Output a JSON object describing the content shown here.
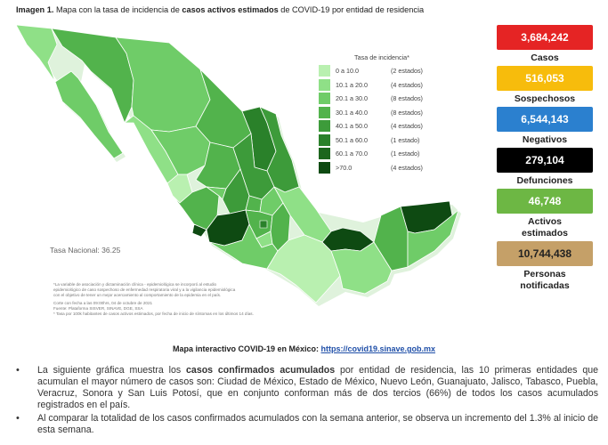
{
  "caption": {
    "prefix": "Imagen 1.",
    "part1": " Mapa con la tasa de incidencia de ",
    "bold": "casos activos estimados",
    "part2": " de COVID-19 por entidad de residencia"
  },
  "legend": {
    "title": "Tasa de incidencia*",
    "items": [
      {
        "range": "0  a 10.0",
        "count": "(2 estados)",
        "color": "#b9f0b0"
      },
      {
        "range": "10.1 a 20.0",
        "count": "(4 estados)",
        "color": "#8fe087"
      },
      {
        "range": "20.1 a 30.0",
        "count": "(8 estados)",
        "color": "#6fcc68"
      },
      {
        "range": "30.1 a 40.0",
        "count": "(8 estados)",
        "color": "#52b34c"
      },
      {
        "range": "40.1 a 50.0",
        "count": "(4 estados)",
        "color": "#3d9b3a"
      },
      {
        "range": "50.1 a 60.0",
        "count": "(1 estado)",
        "color": "#2a812a"
      },
      {
        "range": "60.1 a 70.0",
        "count": "(1 estado)",
        "color": "#1c661d"
      },
      {
        "range": ">70.0",
        "count": "(4 estados)",
        "color": "#0e4a12"
      }
    ]
  },
  "tasa_nacional": "Tasa Nacional: 36.25",
  "footnotes": [
    "*La variable de asociación y dictaminación clínica - epidemiológica  se incorporó al estudio",
    "epidemiológico de caso sospechoso de enfermedad respiratoria viral y a la vigilancia epidemiológica",
    "con el objetivo de tener un mejor acercamiento al comportamiento de la epidemia en el país.",
    "Corte con fecha a las 09:00hrs, 04 de octubre de 2021",
    "Fuente: Plataforma SISVER, SINAVE, DGE, SSA",
    "* Tasa por 100k habitantes de casos activos estimados, por fecha de inicio de síntomas en los últimos 14 días."
  ],
  "stats": [
    {
      "value": "3,684,242",
      "label": "Casos",
      "color": "#e52424",
      "text": "#ffffff"
    },
    {
      "value": "516,053",
      "label": "Sospechosos",
      "color": "#f7bc0c",
      "text": "#ffffff"
    },
    {
      "value": "6,544,143",
      "label": "Negativos",
      "color": "#2b80cf",
      "text": "#ffffff"
    },
    {
      "value": "279,104",
      "label": "Defunciones",
      "color": "#000000",
      "text": "#ffffff"
    },
    {
      "value": "46,748",
      "label": "Activos estimados",
      "color": "#6db744",
      "text": "#ffffff"
    },
    {
      "value": "10,744,438",
      "label": "Personas notificadas",
      "color": "#c5a068",
      "text": "#222222"
    }
  ],
  "link": {
    "label": "Mapa interactivo COVID-19 en México: ",
    "url": "https://covid19.sinave.gob.mx"
  },
  "bullets": [
    {
      "pre": "La siguiente gráfica muestra los ",
      "bold": "casos confirmados acumulados",
      "post": " por entidad de residencia, las 10 primeras entidades que acumulan el mayor número de casos son: Ciudad de México, Estado de México, Nuevo León, Guanajuato, Jalisco, Tabasco, Puebla, Veracruz, Sonora y San Luis Potosí, que en conjunto conforman más de dos tercios (66%) de todos los casos acumulados registrados en el país."
    },
    {
      "pre": "Al comparar la totalidad de los casos confirmados acumulados con la semana anterior, se observa un incremento del 1.3% al inicio de esta semana.",
      "bold": "",
      "post": ""
    }
  ],
  "bullet_char": "•"
}
